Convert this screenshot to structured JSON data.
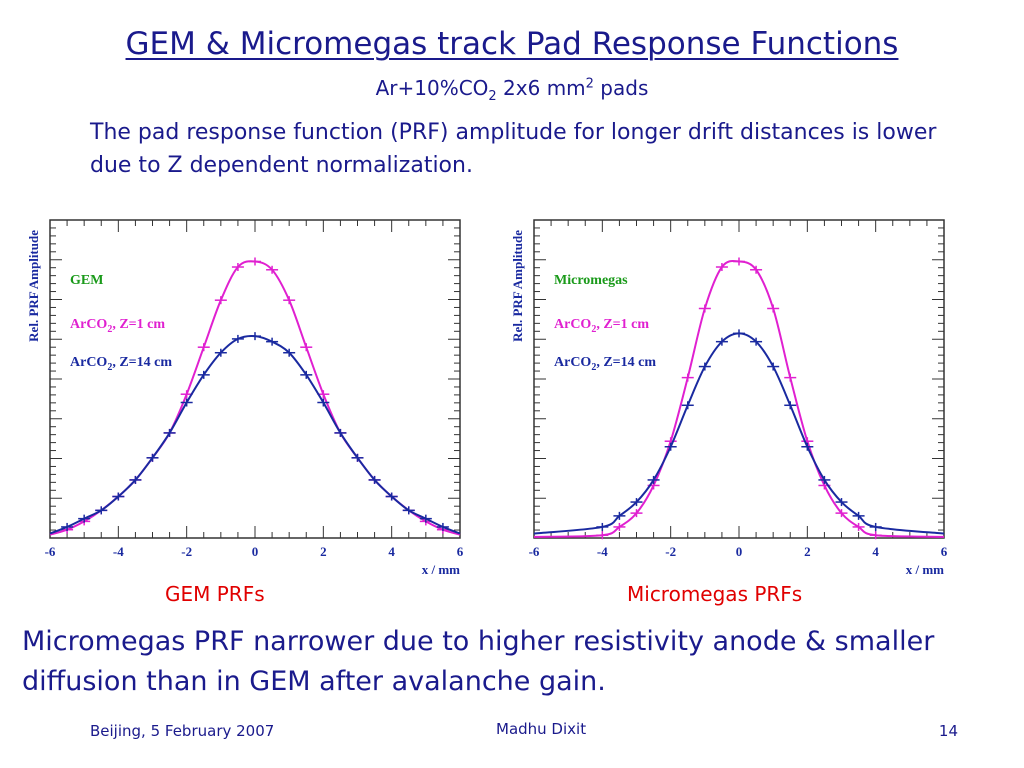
{
  "slide": {
    "title": "GEM & Micromegas track Pad Response Functions",
    "subtitle_main": "Ar+10%CO",
    "subtitle_sub": "2",
    "subtitle_mid": " 2x6 mm",
    "subtitle_sup": "2",
    "subtitle_end": " pads",
    "note": "The pad response function (PRF) amplitude for longer drift distances is lower due to Z dependent normalization.",
    "gem_caption": "GEM PRFs",
    "micromegas_caption": "Micromegas PRFs",
    "conclusion": "Micromegas PRF narrower due to higher resistivity anode & smaller diffusion than in GEM after avalanche gain.",
    "footer_left": "Beijing, 5 February 2007",
    "footer_center": "Madhu Dixit",
    "footer_right": "14"
  },
  "colors": {
    "text": "#1a1a8c",
    "caption": "#e00000",
    "series_z1": "#e020d0",
    "series_z14": "#1a2aa0",
    "legend_title": "#1a9a1a",
    "axis_title": "#1a2aa0"
  },
  "chart_data": [
    {
      "type": "line",
      "legend_title": "GEM",
      "ylabel": "Rel. PRF Amplitude",
      "xlabel": "x / mm",
      "xlim": [
        -6,
        6
      ],
      "xticks": [
        "-6",
        "-4",
        "-2",
        "0",
        "2",
        "4",
        "6"
      ],
      "legend_placement": "top-left",
      "series": [
        {
          "label_main": "ArCO",
          "label_sub": "2",
          "label_rest": ", Z=1 cm",
          "color": "#e020d0",
          "x": [
            -5.5,
            -5.0,
            -4.5,
            -4.0,
            -3.5,
            -3.0,
            -2.5,
            -2.0,
            -1.5,
            -1.0,
            -0.5,
            0.0,
            0.5,
            1.0,
            1.5,
            2.0,
            2.5,
            3.0,
            3.5,
            4.0,
            4.5,
            5.0,
            5.5
          ],
          "y": [
            0.03,
            0.06,
            0.1,
            0.15,
            0.21,
            0.29,
            0.38,
            0.52,
            0.69,
            0.86,
            0.98,
            1.0,
            0.97,
            0.86,
            0.69,
            0.52,
            0.38,
            0.29,
            0.21,
            0.15,
            0.1,
            0.06,
            0.03
          ]
        },
        {
          "label_main": "ArCO",
          "label_sub": "2",
          "label_rest": ", Z=14 cm",
          "color": "#1a2aa0",
          "x": [
            -5.5,
            -5.0,
            -4.5,
            -4.0,
            -3.5,
            -3.0,
            -2.5,
            -2.0,
            -1.5,
            -1.0,
            -0.5,
            0.0,
            0.5,
            1.0,
            1.5,
            2.0,
            2.5,
            3.0,
            3.5,
            4.0,
            4.5,
            5.0,
            5.5
          ],
          "y": [
            0.04,
            0.07,
            0.1,
            0.15,
            0.21,
            0.29,
            0.38,
            0.49,
            0.59,
            0.67,
            0.72,
            0.73,
            0.71,
            0.67,
            0.59,
            0.49,
            0.38,
            0.29,
            0.21,
            0.15,
            0.1,
            0.07,
            0.04
          ]
        }
      ],
      "ylim": [
        0,
        1.15
      ]
    },
    {
      "type": "line",
      "legend_title": "Micromegas",
      "ylabel": "Rel. PRF Amplitude",
      "xlabel": "x / mm",
      "xlim": [
        -6,
        6
      ],
      "xticks": [
        "-6",
        "-4",
        "-2",
        "0",
        "2",
        "4",
        "6"
      ],
      "legend_placement": "top-left",
      "series": [
        {
          "label_main": "ArCO",
          "label_sub": "2",
          "label_rest": ", Z=1 cm",
          "color": "#e020d0",
          "x": [
            -4.0,
            -3.5,
            -3.0,
            -2.5,
            -2.0,
            -1.5,
            -1.0,
            -0.5,
            0.0,
            0.5,
            1.0,
            1.5,
            2.0,
            2.5,
            3.0,
            3.5,
            4.0
          ],
          "y": [
            0.01,
            0.04,
            0.09,
            0.19,
            0.35,
            0.58,
            0.83,
            0.98,
            1.0,
            0.97,
            0.83,
            0.58,
            0.35,
            0.19,
            0.09,
            0.04,
            0.01
          ]
        },
        {
          "label_main": "ArCO",
          "label_sub": "2",
          "label_rest": ", Z=14 cm",
          "color": "#1a2aa0",
          "x": [
            -4.0,
            -3.5,
            -3.0,
            -2.5,
            -2.0,
            -1.5,
            -1.0,
            -0.5,
            0.0,
            0.5,
            1.0,
            1.5,
            2.0,
            2.5,
            3.0,
            3.5,
            4.0
          ],
          "y": [
            0.04,
            0.08,
            0.13,
            0.21,
            0.33,
            0.48,
            0.62,
            0.71,
            0.74,
            0.71,
            0.62,
            0.48,
            0.33,
            0.21,
            0.13,
            0.08,
            0.04
          ]
        }
      ],
      "ylim": [
        0,
        1.15
      ]
    }
  ]
}
